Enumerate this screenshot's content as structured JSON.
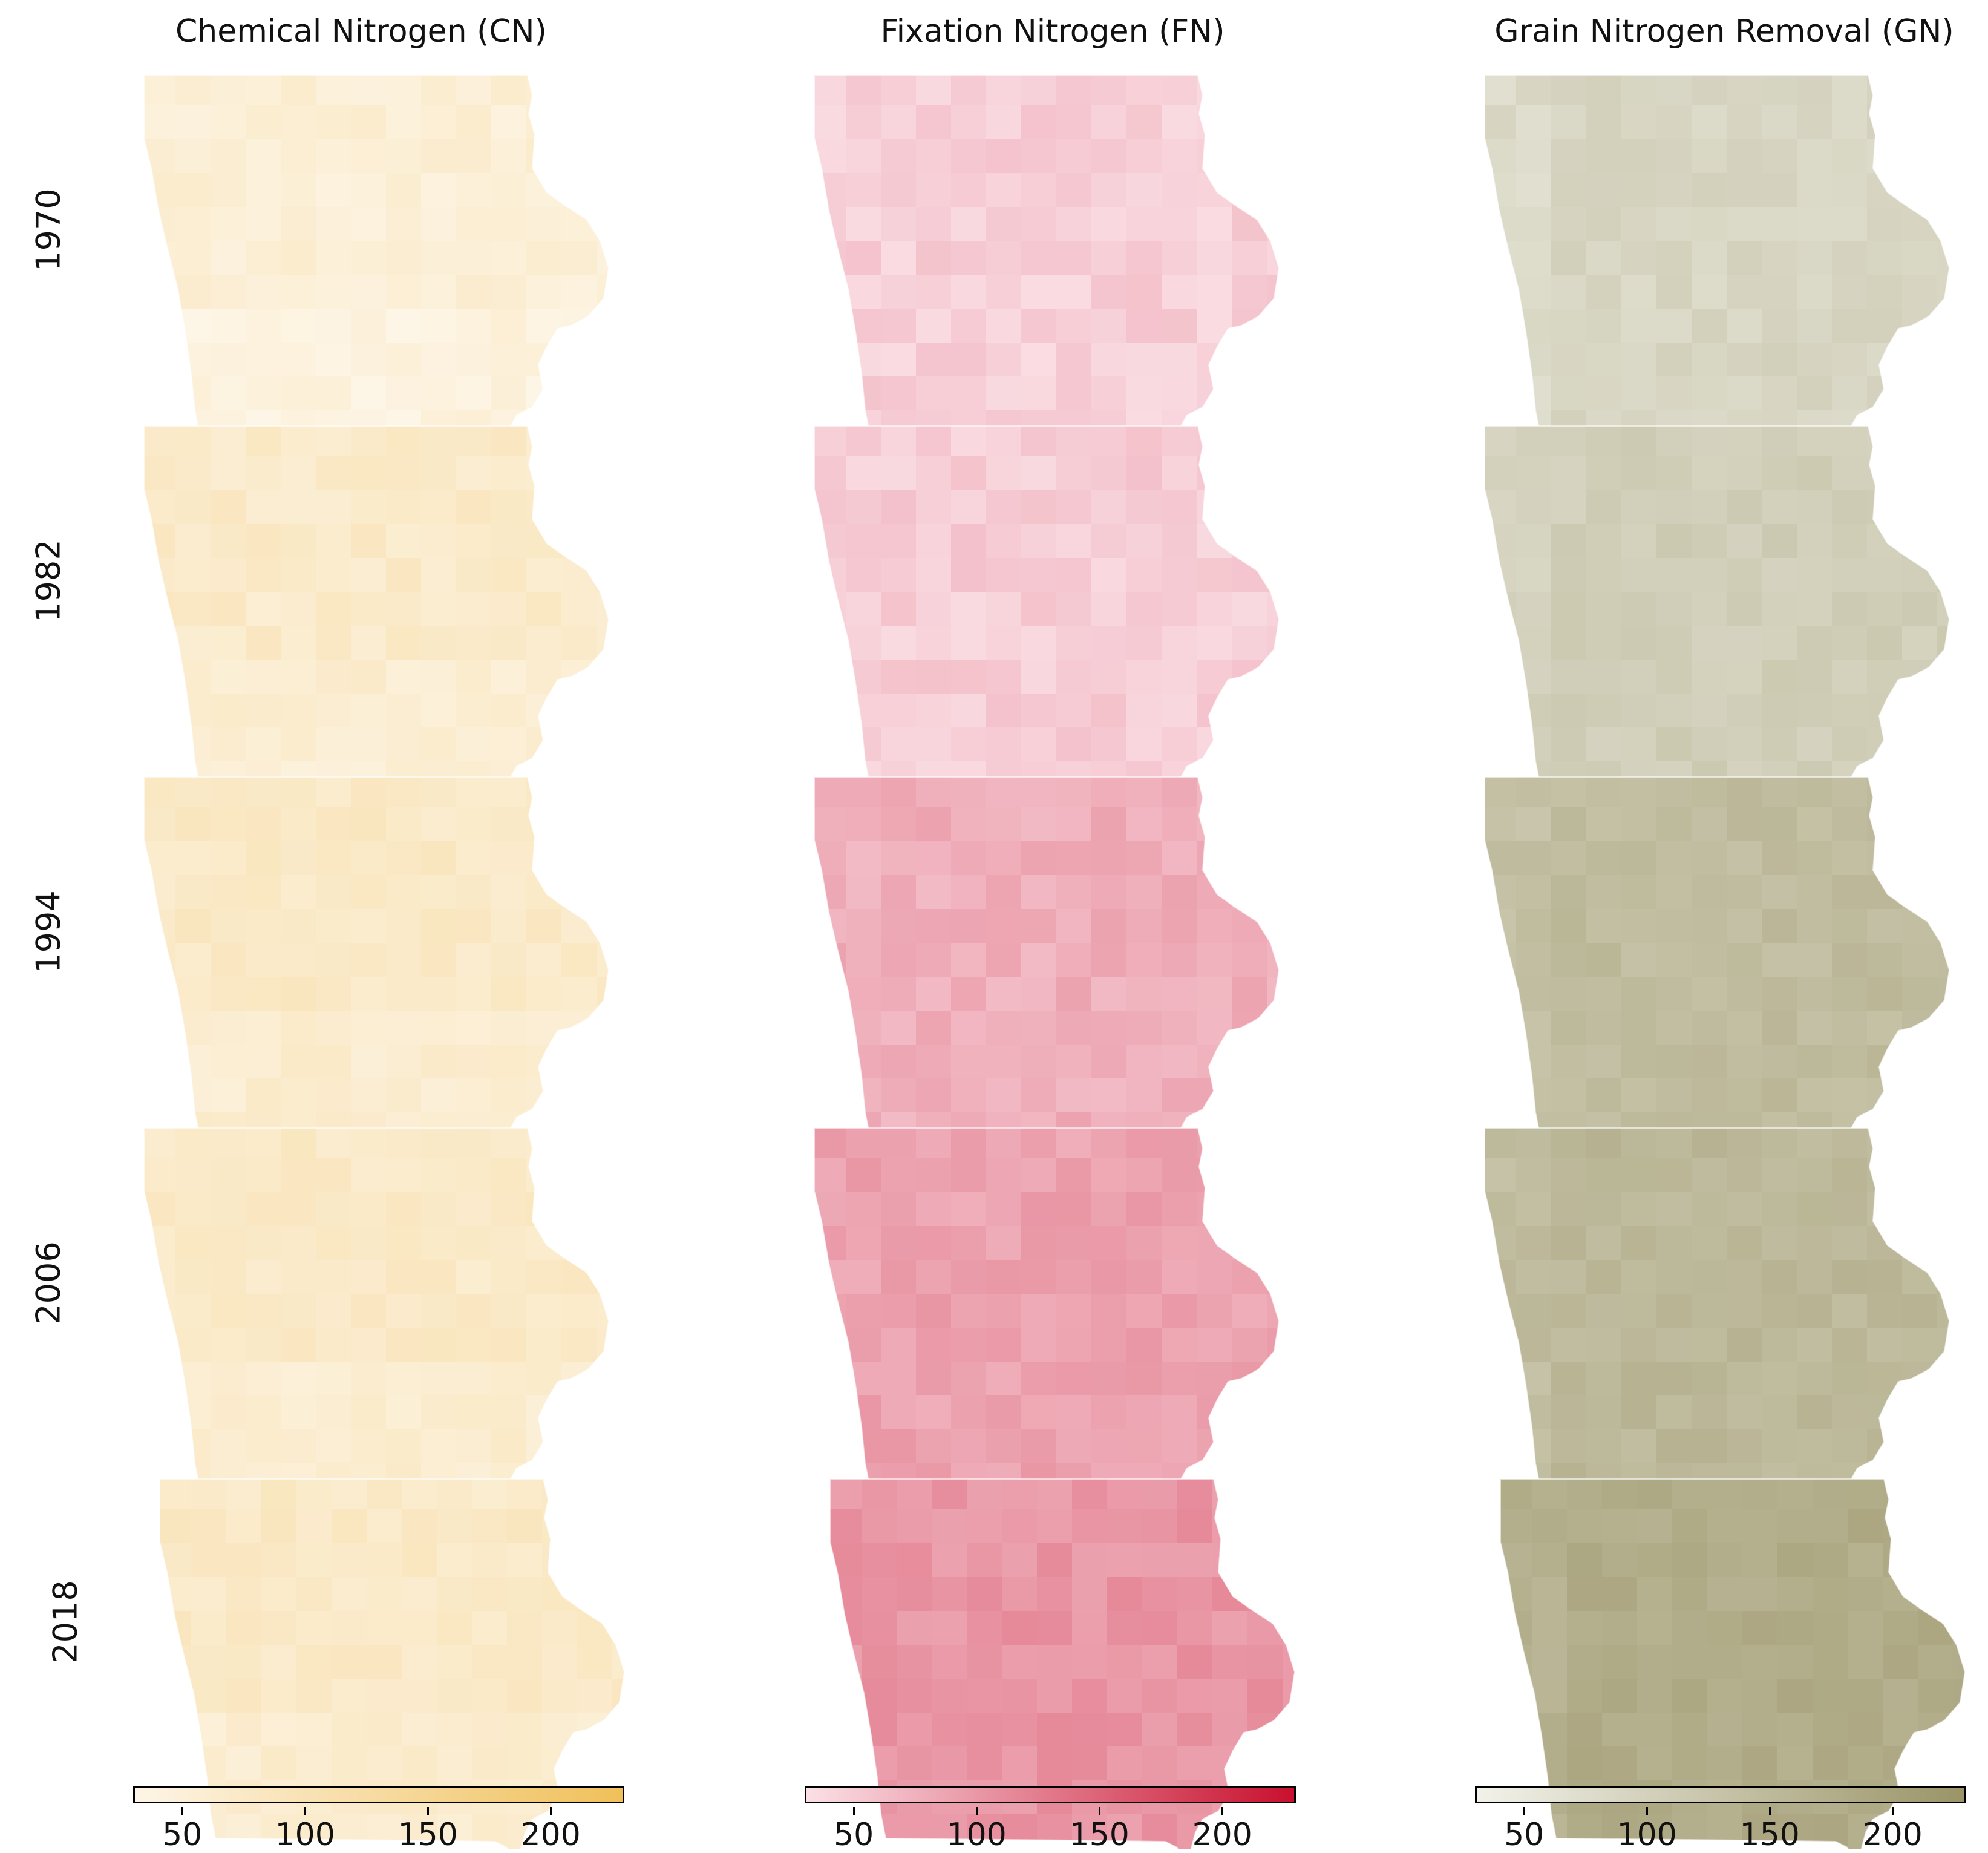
{
  "columns": [
    {
      "title": "Chemical Nitrogen (CN)",
      "colormap": {
        "low": "#fdf5e6",
        "high": "#f0c05a"
      },
      "level_by_year": [
        0.12,
        0.2,
        0.22,
        0.22,
        0.22
      ]
    },
    {
      "title": "Fixation Nitrogen (FN)",
      "colormap": {
        "low": "#fbe0e6",
        "high": "#c8102e"
      },
      "level_by_year": [
        0.08,
        0.09,
        0.24,
        0.3,
        0.36
      ]
    },
    {
      "title": "Grain Nitrogen Removal (GN)",
      "colormap": {
        "low": "#f2f2ea",
        "high": "#9a9467"
      },
      "level_by_year": [
        0.3,
        0.38,
        0.58,
        0.62,
        0.74
      ]
    }
  ],
  "years": [
    "1970",
    "1982",
    "1994",
    "2006",
    "2018"
  ],
  "colorbar": {
    "min": 30,
    "max": 230,
    "ticks": [
      "50",
      "100",
      "150",
      "200"
    ]
  }
}
